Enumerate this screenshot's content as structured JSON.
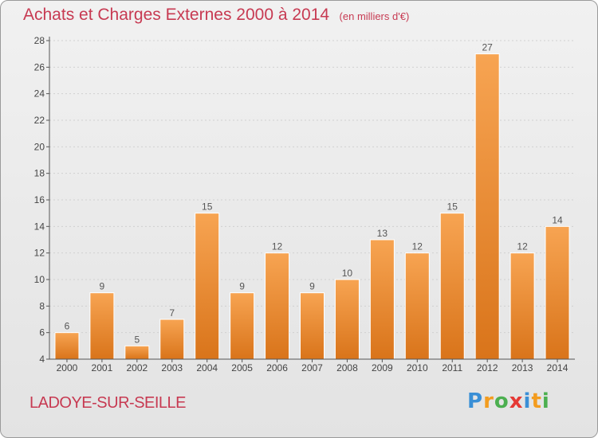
{
  "chart_data": {
    "type": "bar",
    "title": "Achats et Charges Externes 2000 à 2014",
    "subtitle": "(en milliers d'€)",
    "categories": [
      "2000",
      "2001",
      "2002",
      "2003",
      "2004",
      "2005",
      "2006",
      "2007",
      "2008",
      "2009",
      "2010",
      "2011",
      "2012",
      "2013",
      "2014"
    ],
    "values": [
      6,
      9,
      5,
      7,
      15,
      9,
      12,
      9,
      10,
      13,
      12,
      15,
      27,
      12,
      14
    ],
    "ylim": [
      4,
      28
    ],
    "yticks": [
      4,
      6,
      8,
      10,
      12,
      14,
      16,
      18,
      20,
      22,
      24,
      26,
      28
    ],
    "grid": true,
    "data_labels": true,
    "bar_color": "#f0902f"
  },
  "location": "LADOYE-SUR-SEILLE",
  "logo": {
    "text": "Proxiti",
    "letter_colors": [
      "#3a8fd6",
      "#f39c1f",
      "#4caf50",
      "#e53935",
      "#3a8fd6",
      "#f39c1f",
      "#4caf50"
    ]
  }
}
